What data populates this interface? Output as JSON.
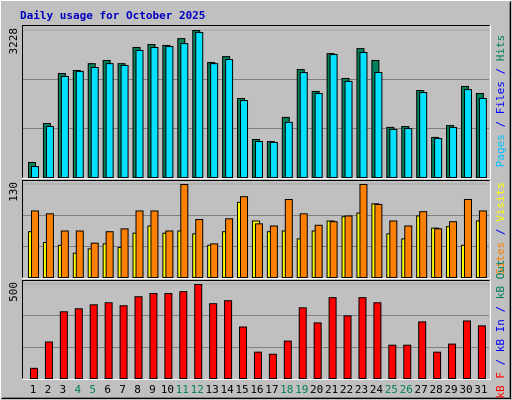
{
  "chart_data": [
    {
      "type": "bar",
      "title": "Daily usage for October 2025",
      "ylim": [
        0,
        3228
      ],
      "yticks": [
        3228
      ],
      "legend_separator": " / ",
      "legend": [
        {
          "text": "Pages",
          "color": "#00c0ff"
        },
        {
          "text": "Files",
          "color": "#0000ff"
        },
        {
          "text": "Hits",
          "color": "#00805c"
        }
      ],
      "series": [
        {
          "color": "#00805c",
          "values": [
            330,
            1186,
            2284,
            2350,
            2500,
            2570,
            2500,
            2855,
            2920,
            2900,
            3050,
            3228,
            2525,
            2655,
            1735,
            835,
            790,
            1320,
            2370,
            1890,
            2720,
            2175,
            2830,
            2570,
            1100,
            1120,
            1910,
            880,
            1140,
            2000,
            1845
          ]
        },
        {
          "color": "#00e0ff",
          "values": [
            240,
            1120,
            2218,
            2330,
            2415,
            2500,
            2460,
            2790,
            2855,
            2875,
            2940,
            3185,
            2500,
            2590,
            1690,
            790,
            770,
            1210,
            2305,
            1845,
            2700,
            2110,
            2745,
            2305,
            1055,
            1075,
            1865,
            855,
            1100,
            1930,
            1735
          ]
        }
      ]
    },
    {
      "type": "bar",
      "ylim": [
        0,
        130
      ],
      "yticks": [
        130
      ],
      "legend": [
        {
          "text": "Sites",
          "color": "#ff8000"
        },
        {
          "text": "Visits",
          "color": "#ffff00"
        }
      ],
      "series": [
        {
          "color": "#ffff00",
          "values": [
            64,
            49,
            45,
            34,
            40,
            47,
            42,
            62,
            72,
            62,
            65,
            61,
            45,
            64,
            105,
            79,
            64,
            65,
            54,
            65,
            79,
            85,
            90,
            103,
            61,
            54,
            86,
            69,
            71,
            45,
            79
          ]
        },
        {
          "color": "#ff8000",
          "values": [
            93,
            89,
            65,
            65,
            48,
            64,
            68,
            93,
            93,
            65,
            130,
            81,
            47,
            82,
            113,
            75,
            72,
            109,
            89,
            73,
            78,
            86,
            130,
            102,
            79,
            72,
            92,
            68,
            78,
            109,
            93
          ]
        }
      ]
    },
    {
      "type": "bar",
      "ylim": [
        0,
        500
      ],
      "yticks": [
        500
      ],
      "legend": [
        {
          "text": "kB F",
          "color": "#ff0000"
        },
        {
          "text": "kB In",
          "color": "#0000ff"
        },
        {
          "text": "kB Out",
          "color": "#00805c"
        }
      ],
      "series": [
        {
          "color": "#ff0000",
          "values": [
            54,
            194,
            355,
            371,
            392,
            403,
            387,
            435,
            452,
            452,
            462,
            500,
            398,
            414,
            274,
            140,
            129,
            199,
            376,
            296,
            430,
            333,
            430,
            403,
            177,
            177,
            301,
            140,
            183,
            306,
            280
          ]
        }
      ],
      "categories": [
        "1",
        "2",
        "3",
        "4",
        "5",
        "6",
        "7",
        "8",
        "9",
        "10",
        "11",
        "12",
        "13",
        "14",
        "15",
        "16",
        "17",
        "18",
        "19",
        "20",
        "21",
        "22",
        "23",
        "24",
        "25",
        "26",
        "27",
        "28",
        "29",
        "30",
        "31"
      ],
      "category_colors": [
        "#000000",
        "#000000",
        "#000000",
        "#00805c",
        "#00805c",
        "#000000",
        "#000000",
        "#000000",
        "#000000",
        "#000000",
        "#00805c",
        "#00805c",
        "#000000",
        "#000000",
        "#000000",
        "#000000",
        "#000000",
        "#00805c",
        "#00805c",
        "#000000",
        "#000000",
        "#000000",
        "#000000",
        "#000000",
        "#00805c",
        "#00805c",
        "#000000",
        "#000000",
        "#000000",
        "#000000",
        "#000000"
      ]
    }
  ]
}
